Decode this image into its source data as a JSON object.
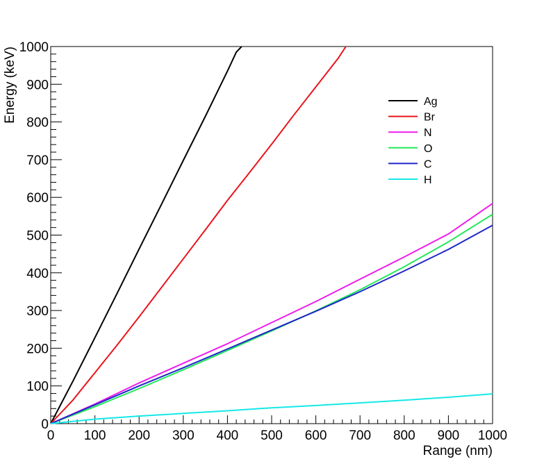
{
  "chart_data": {
    "type": "line",
    "title": "",
    "xlabel": "Range (nm)",
    "ylabel": "Energy (keV)",
    "xlim": [
      0,
      1000
    ],
    "ylim": [
      0,
      1000
    ],
    "x_ticks": [
      "0",
      "100",
      "200",
      "300",
      "400",
      "500",
      "600",
      "700",
      "800",
      "900",
      "1000"
    ],
    "y_ticks": [
      "0",
      "100",
      "200",
      "300",
      "400",
      "500",
      "600",
      "700",
      "800",
      "900",
      "1000"
    ],
    "grid": false,
    "legend_position": "top-right",
    "series": [
      {
        "name": "Ag",
        "color": "#000000",
        "x": [
          0,
          50,
          100,
          150,
          200,
          250,
          300,
          350,
          400,
          420,
          432
        ],
        "y": [
          0,
          112,
          228,
          345,
          463,
          580,
          698,
          815,
          935,
          985,
          1000
        ]
      },
      {
        "name": "Br",
        "color": "#e8141a",
        "x": [
          0,
          50,
          100,
          150,
          200,
          250,
          300,
          350,
          400,
          450,
          500,
          550,
          600,
          650,
          668
        ],
        "y": [
          0,
          62,
          135,
          208,
          283,
          360,
          437,
          514,
          592,
          666,
          741,
          818,
          893,
          968,
          1000
        ]
      },
      {
        "name": "N",
        "color": "#ee1cee",
        "x": [
          0,
          100,
          200,
          300,
          400,
          500,
          600,
          700,
          800,
          900,
          1000
        ],
        "y": [
          0,
          52,
          108,
          160,
          212,
          268,
          324,
          383,
          442,
          503,
          584
        ]
      },
      {
        "name": "O",
        "color": "#22e85a",
        "x": [
          0,
          100,
          200,
          300,
          400,
          500,
          600,
          700,
          800,
          900,
          1000
        ],
        "y": [
          0,
          45,
          93,
          143,
          194,
          246,
          299,
          355,
          416,
          482,
          555
        ]
      },
      {
        "name": "C",
        "color": "#1f26c8",
        "x": [
          0,
          100,
          200,
          300,
          400,
          500,
          600,
          700,
          800,
          900,
          1000
        ],
        "y": [
          0,
          50,
          100,
          148,
          198,
          248,
          298,
          350,
          405,
          462,
          526
        ]
      },
      {
        "name": "H",
        "color": "#14e8e8",
        "x": [
          0,
          100,
          200,
          300,
          400,
          500,
          600,
          700,
          800,
          900,
          1000
        ],
        "y": [
          0,
          12,
          20,
          27,
          34,
          42,
          48,
          55,
          62,
          70,
          79
        ]
      }
    ]
  }
}
